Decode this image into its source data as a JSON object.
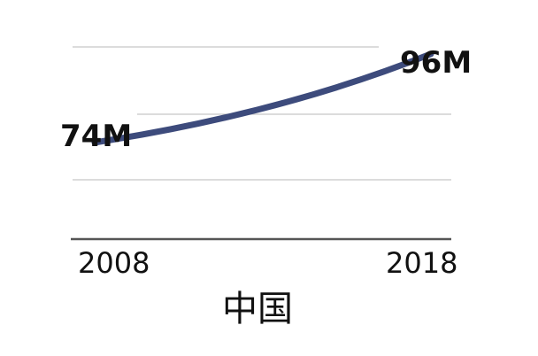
{
  "chart_data": {
    "type": "line",
    "title": "中国",
    "x": [
      2008,
      2018
    ],
    "x_tick_labels": [
      "2008",
      "2018"
    ],
    "series": [
      {
        "values": [
          74,
          96
        ],
        "color": "#3d4b7c"
      }
    ],
    "data_labels": [
      "74M",
      "96M"
    ],
    "ylim": [
      50,
      105
    ],
    "grid": true,
    "legend": "none"
  }
}
